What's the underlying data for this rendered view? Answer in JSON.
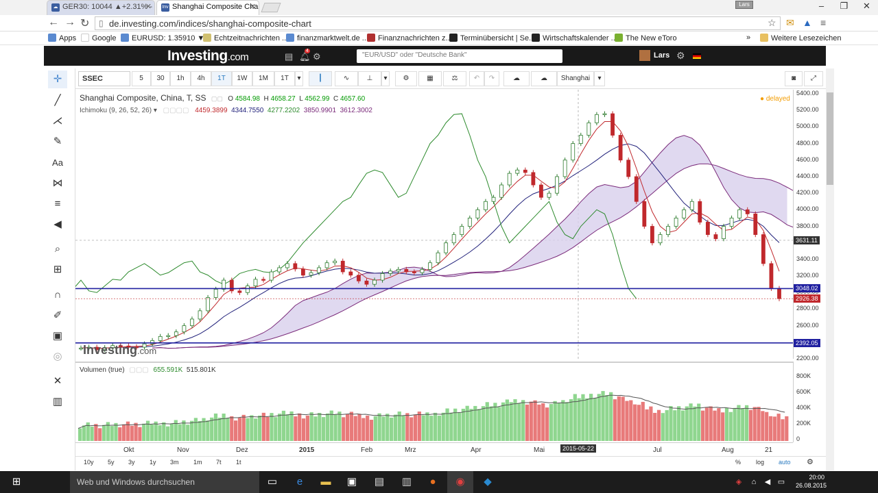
{
  "browser": {
    "tabs": [
      {
        "label": "GER30: 10044 ▲+2.31% -",
        "active": false
      },
      {
        "label": "Shanghai Composite Char",
        "active": true
      }
    ],
    "user_chip": "Lars",
    "url": "de.investing.com/indices/shanghai-composite-chart",
    "bookmarks": [
      "Apps",
      "Google",
      "EURUSD: 1.35910 ▼...",
      "Echtzeitnachrichten ...",
      "finanzmarktwelt.de ...",
      "Finanznachrichten z...",
      "Terminübersicht | Se...",
      "Wirtschaftskalender ...",
      "The New eToro"
    ],
    "other_bookmarks": "Weitere Lesezeichen",
    "window_controls": [
      "–",
      "❐",
      "✕"
    ]
  },
  "site": {
    "logo": "Investing",
    "logo_suffix": ".com",
    "notification_count": "4",
    "search_placeholder": "\"EUR/USD\" oder \"Deutsche Bank\"",
    "username": "Lars"
  },
  "toolbar": {
    "symbol": "SSEC",
    "intervals": [
      "5",
      "30",
      "1h",
      "4h",
      "1T",
      "1W",
      "1M",
      "1T"
    ],
    "active_interval": "1T",
    "compare_label": "Shanghai"
  },
  "chart_legend": {
    "title": "Shanghai Composite, China, T, SS",
    "open_label": "O",
    "open": "4584.98",
    "high_label": "H",
    "high": "4658.27",
    "low_label": "L",
    "low": "4562.99",
    "close_label": "C",
    "close": "4657.60",
    "ichimoku_label": "Ichimoku (9, 26, 52, 26)",
    "ichimoku_values": [
      "4459.3899",
      "4344.7550",
      "4277.2202",
      "3850.9901",
      "3612.3002"
    ],
    "delayed": "delayed",
    "watermark": "Investing",
    "watermark_suffix": ".com"
  },
  "price_tags": {
    "crosshair": "3631.11",
    "line1": "3048.02",
    "last": "2926.38",
    "line2": "2392.05"
  },
  "volume_legend": {
    "label": "Volumen (true)",
    "v1": "655.591K",
    "v2": "515.801K"
  },
  "x_date_tag": "2015-05-22",
  "bottom_ranges": [
    "10y",
    "5y",
    "3y",
    "1y",
    "3m",
    "1m",
    "7t",
    "1t"
  ],
  "bottom_right": [
    "%",
    "log",
    "auto"
  ],
  "taskbar": {
    "search": "Web und Windows durchsuchen",
    "time": "20:00",
    "date": "26.08.2015"
  },
  "colors": {
    "up": "#2c7a2c",
    "down": "#c0282c",
    "tenkan": "#c0282c",
    "kijun": "#20207a",
    "chikou": "#2c8a2c",
    "span": "#7a2a7a",
    "cloud": "#d8d0ec",
    "hline": "#2020a0",
    "vol_up": "#8fd68f",
    "vol_down": "#e87a7a"
  },
  "chart_data": {
    "type": "candlestick",
    "ylim": [
      2200,
      5450
    ],
    "y_ticks": [
      2200,
      2400,
      2600,
      2800,
      3000,
      3200,
      3400,
      3600,
      3800,
      4000,
      4200,
      4400,
      4600,
      4800,
      5000,
      5200,
      5400
    ],
    "x_ticks": [
      "Okt",
      "Nov",
      "Dez",
      "2015",
      "Feb",
      "Mrz",
      "Apr",
      "Mai",
      "Jul",
      "Aug",
      "21"
    ],
    "horizontal_lines": [
      3048.02,
      2392.05
    ],
    "close_series": [
      2330,
      2340,
      2310,
      2335,
      2360,
      2355,
      2345,
      2340,
      2380,
      2420,
      2470,
      2480,
      2525,
      2600,
      2680,
      2780,
      2940,
      3040,
      3150,
      3020,
      3000,
      3080,
      3160,
      3150,
      3250,
      3300,
      3350,
      3285,
      3210,
      3240,
      3300,
      3360,
      3380,
      3250,
      3210,
      3140,
      3100,
      3150,
      3230,
      3260,
      3280,
      3250,
      3240,
      3280,
      3360,
      3480,
      3600,
      3700,
      3800,
      3900,
      4000,
      4100,
      4150,
      4300,
      4440,
      4480,
      4450,
      4300,
      4150,
      4200,
      4400,
      4600,
      4800,
      4900,
      5050,
      5150,
      5160,
      4900,
      4600,
      4400,
      4100,
      3800,
      3600,
      3700,
      3800,
      3900,
      4000,
      4100,
      3850,
      3700,
      3650,
      3800,
      3900,
      4000,
      3950,
      3700,
      3350,
      3050,
      2926
    ],
    "volume_k": {
      "ticks": [
        "800K",
        "600K",
        "400K",
        "200K",
        "0"
      ],
      "axis_max": 900
    }
  }
}
